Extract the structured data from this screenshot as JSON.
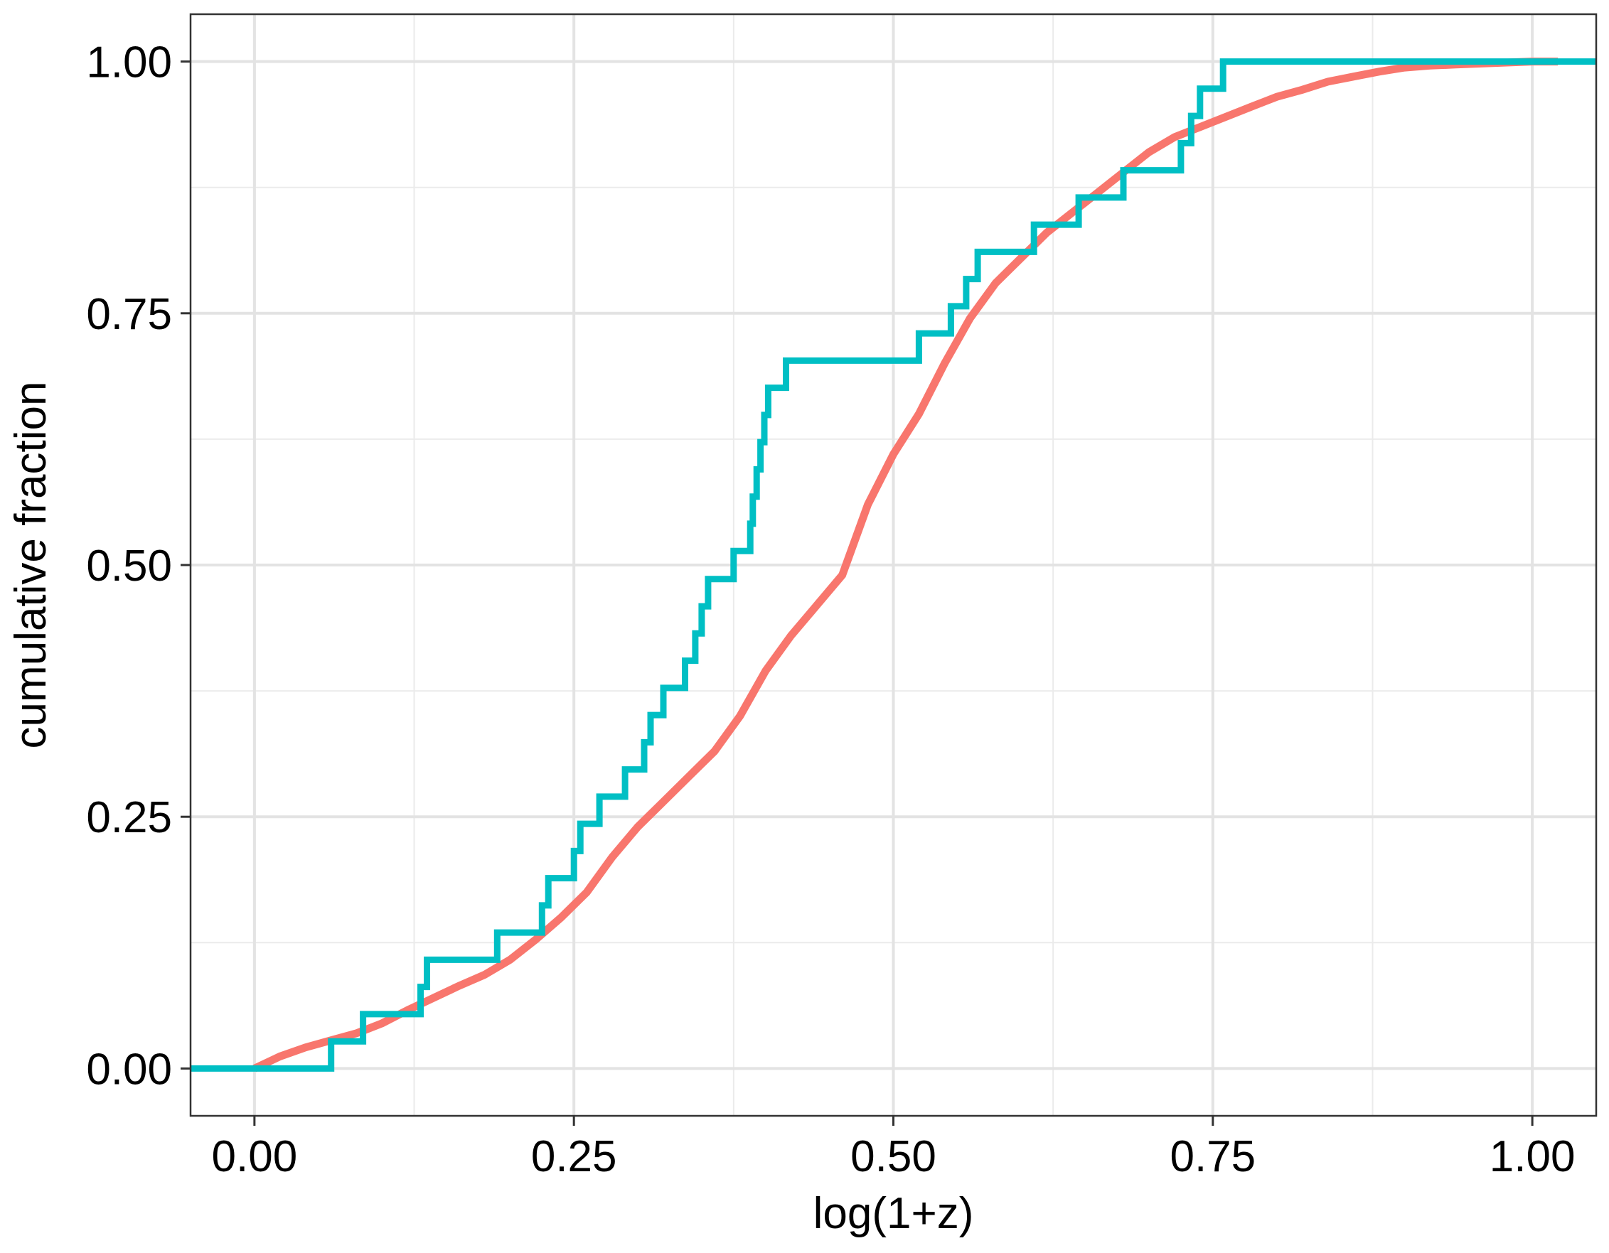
{
  "chart_data": {
    "type": "line",
    "subtype": "empirical-cdf-step",
    "title": "",
    "xlabel": "log(1+z)",
    "ylabel": "cumulative fraction",
    "xlim": [
      -0.05,
      1.05
    ],
    "ylim": [
      -0.047,
      1.047
    ],
    "x_ticks": [
      "0.00",
      "0.25",
      "0.50",
      "0.75",
      "1.00"
    ],
    "y_ticks": [
      "0.00",
      "0.25",
      "0.50",
      "0.75",
      "1.00"
    ],
    "grid": true,
    "legend": "none",
    "series": [
      {
        "color": "#F8766D",
        "step": false,
        "x": [
          0.0,
          0.02,
          0.04,
          0.06,
          0.08,
          0.1,
          0.12,
          0.14,
          0.16,
          0.18,
          0.2,
          0.22,
          0.24,
          0.26,
          0.28,
          0.3,
          0.32,
          0.34,
          0.36,
          0.38,
          0.4,
          0.42,
          0.44,
          0.46,
          0.48,
          0.5,
          0.52,
          0.54,
          0.56,
          0.58,
          0.6,
          0.62,
          0.64,
          0.66,
          0.68,
          0.7,
          0.72,
          0.74,
          0.76,
          0.78,
          0.8,
          0.82,
          0.84,
          0.86,
          0.88,
          0.9,
          0.92,
          0.94,
          0.96,
          0.98,
          1.0,
          1.02
        ],
        "y": [
          0.0,
          0.012,
          0.021,
          0.028,
          0.035,
          0.045,
          0.058,
          0.07,
          0.082,
          0.093,
          0.108,
          0.128,
          0.15,
          0.175,
          0.21,
          0.24,
          0.265,
          0.29,
          0.315,
          0.35,
          0.395,
          0.43,
          0.46,
          0.49,
          0.56,
          0.61,
          0.65,
          0.7,
          0.745,
          0.78,
          0.805,
          0.83,
          0.85,
          0.87,
          0.89,
          0.91,
          0.925,
          0.935,
          0.945,
          0.955,
          0.965,
          0.972,
          0.98,
          0.985,
          0.99,
          0.994,
          0.996,
          0.997,
          0.998,
          0.999,
          1.0,
          1.0
        ]
      },
      {
        "color": "#00BFC4",
        "step": true,
        "x": [
          -0.05,
          0.06,
          0.085,
          0.13,
          0.135,
          0.19,
          0.225,
          0.23,
          0.25,
          0.255,
          0.27,
          0.29,
          0.305,
          0.31,
          0.32,
          0.337,
          0.345,
          0.35,
          0.355,
          0.358,
          0.375,
          0.388,
          0.39,
          0.393,
          0.396,
          0.399,
          0.402,
          0.405,
          0.416,
          0.52,
          0.545,
          0.557,
          0.566,
          0.61,
          0.645,
          0.68,
          0.725,
          0.733,
          0.74,
          0.758,
          1.05
        ],
        "y": [
          0.0,
          0.027,
          0.054,
          0.081,
          0.108,
          0.135,
          0.162,
          0.189,
          0.216,
          0.243,
          0.27,
          0.297,
          0.324,
          0.351,
          0.378,
          0.405,
          0.432,
          0.459,
          0.486,
          0.486,
          0.514,
          0.541,
          0.568,
          0.595,
          0.622,
          0.649,
          0.676,
          0.676,
          0.703,
          0.73,
          0.757,
          0.784,
          0.811,
          0.838,
          0.865,
          0.892,
          0.919,
          0.946,
          0.973,
          1.0,
          1.0
        ]
      }
    ]
  }
}
